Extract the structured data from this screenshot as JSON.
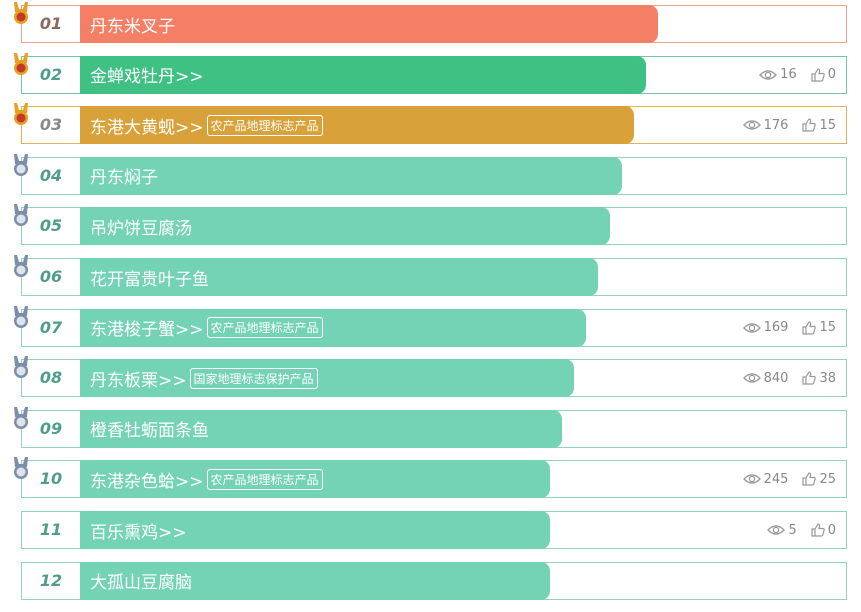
{
  "items": [
    {
      "rank": "01",
      "name": "丹东米叉子"
    },
    {
      "rank": "02",
      "name": "金蝉戏牡丹>>",
      "views": 16,
      "likes": 0
    },
    {
      "rank": "03",
      "name": "东港大黄蚬>>",
      "tag": "农产品地理标志产品",
      "views": 176,
      "likes": 15
    },
    {
      "rank": "04",
      "name": "丹东焖子"
    },
    {
      "rank": "05",
      "name": "吊炉饼豆腐汤"
    },
    {
      "rank": "06",
      "name": "花开富贵叶子鱼"
    },
    {
      "rank": "07",
      "name": "东港梭子蟹>>",
      "tag": "农产品地理标志产品",
      "views": 169,
      "likes": 15
    },
    {
      "rank": "08",
      "name": "丹东板栗>>",
      "tag": "国家地理标志保护产品",
      "views": 840,
      "likes": 38
    },
    {
      "rank": "09",
      "name": "橙香牡蛎面条鱼"
    },
    {
      "rank": "10",
      "name": "东港杂色蛤>>",
      "tag": "农产品地理标志产品",
      "views": 245,
      "likes": 25
    },
    {
      "rank": "11",
      "name": "百乐熏鸡>>",
      "views": 5,
      "likes": 0
    },
    {
      "rank": "12",
      "name": "大孤山豆腐脑"
    }
  ]
}
